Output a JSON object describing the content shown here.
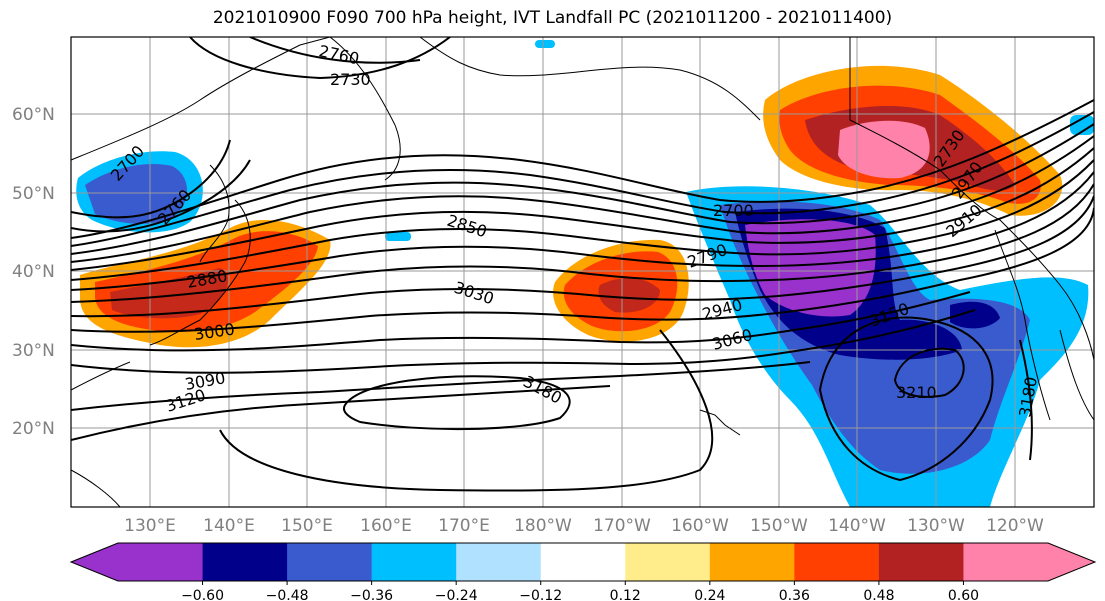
{
  "title": "2021010900 F090 700 hPa height, IVT Landfall PC (2021011200 - 2021011400)",
  "map": {
    "lat_labels": [
      "60°N",
      "50°N",
      "40°N",
      "30°N",
      "20°N"
    ],
    "lon_labels": [
      "130°E",
      "140°E",
      "150°E",
      "160°E",
      "170°E",
      "180°W",
      "170°W",
      "160°W",
      "150°W",
      "140°W",
      "130°W",
      "120°W"
    ],
    "contour_labels": [
      "2760",
      "2730",
      "2700",
      "2760",
      "2850",
      "2880",
      "3000",
      "3030",
      "3090",
      "3120",
      "3180",
      "2700",
      "2790",
      "2940",
      "3060",
      "3150",
      "3210",
      "3180",
      "2730",
      "2910",
      "2970"
    ]
  },
  "colorbar": {
    "colors": [
      "#9932CC",
      "#00008B",
      "#3A5BCD",
      "#00BFFF",
      "#B0E2FF",
      "#FFFFFF",
      "#FFEC8B",
      "#FFA500",
      "#FF4000",
      "#B22222",
      "#FF82AB"
    ],
    "tick_labels": [
      "−0.60",
      "−0.48",
      "−0.36",
      "−0.24",
      "−0.12",
      "0.12",
      "0.24",
      "0.36",
      "0.48",
      "0.60"
    ]
  }
}
